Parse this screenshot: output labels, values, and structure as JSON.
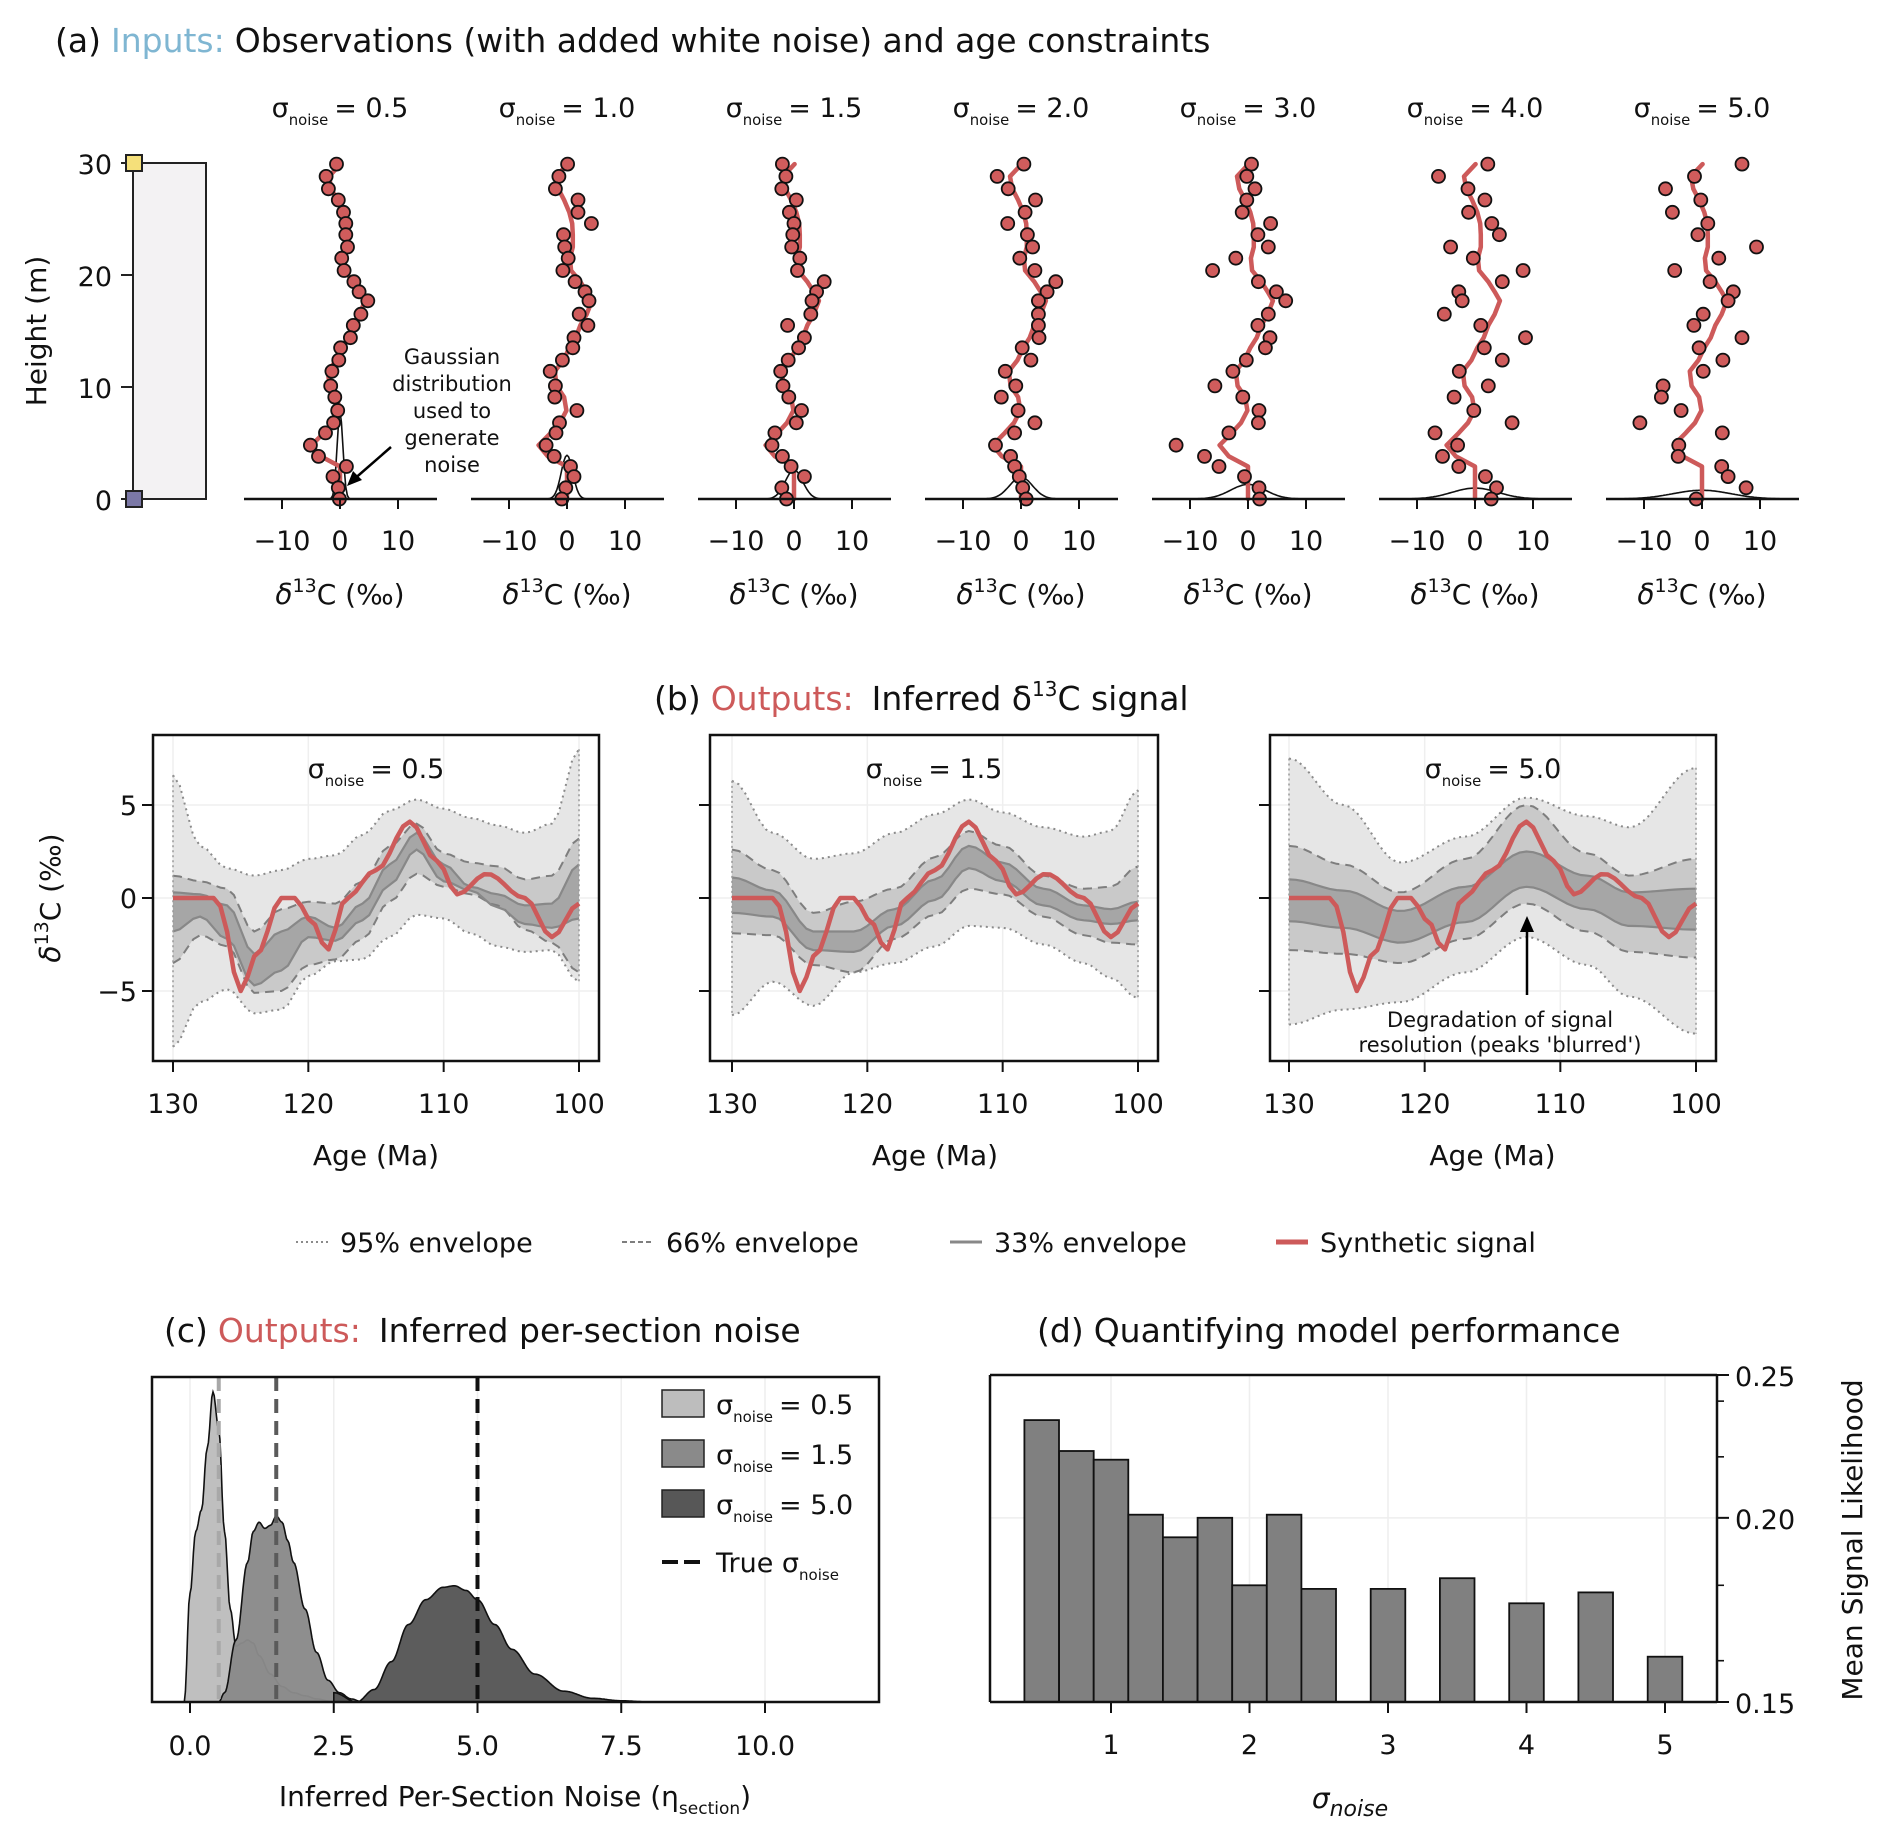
{
  "colors": {
    "inputs_accent": "#7fb6d2",
    "outputs_accent": "#cd5a5a",
    "signal": "#cd5a5a",
    "dot_fill": "#d05c5c",
    "strat_fill": "#f3f2f3",
    "top_marker": "#f5e07a",
    "bottom_marker": "#7b78a6",
    "env95": "#e6e6e6",
    "env66": "#c9c9c9",
    "env33": "#a6a6a6",
    "kde_05": "#bdbdbd",
    "kde_15": "#8a8a8a",
    "kde_50": "#575757",
    "bar": "#808080"
  },
  "panel_a": {
    "label": "(a)",
    "accent_word": "Inputs:",
    "rest_title": "Observations (with added white noise) and age constraints",
    "strat_column": {
      "ylabel": "Height (m)",
      "yticks": [
        0,
        10,
        20,
        30
      ],
      "ylim": [
        0,
        30
      ]
    },
    "sigma_symbol": "σ",
    "sigma_sub": "noise",
    "xticks": [
      -10,
      0,
      10
    ],
    "xlabel_main": "δ",
    "xlabel_sup": "13",
    "xlabel_rest": "C (‰)",
    "annotation": [
      "Gaussian",
      "distribution",
      "used to",
      "generate",
      "noise"
    ]
  },
  "panel_b": {
    "label": "(b)",
    "accent_word": "Outputs:",
    "rest_title_pre": "Inferred δ",
    "rest_title_sup": "13",
    "rest_title_post": "C signal",
    "ylabel_main": "δ",
    "ylabel_sup": "13",
    "ylabel_rest": "C (‰)",
    "xlabel": "Age (Ma)",
    "xticks": [
      130,
      120,
      110,
      100
    ],
    "yticks": [
      -5,
      0,
      5
    ],
    "annotation": [
      "Degradation of signal",
      "resolution (peaks 'blurred')"
    ],
    "legend": [
      {
        "key": "env95",
        "label": "95% envelope"
      },
      {
        "key": "env66",
        "label": "66% envelope"
      },
      {
        "key": "env33",
        "label": "33% envelope"
      },
      {
        "key": "signal",
        "label": "Synthetic signal"
      }
    ]
  },
  "panel_c": {
    "label": "(c)",
    "accent_word": "Outputs:",
    "rest_title": "Inferred per-section noise",
    "xlabel_main": "Inferred Per-Section Noise (η",
    "xlabel_sub": "section",
    "xlabel_end": ")",
    "xticks": [
      "0.0",
      "2.5",
      "5.0",
      "7.5",
      "10.0"
    ],
    "legend": [
      {
        "label": "= 0.5"
      },
      {
        "label": "= 1.5"
      },
      {
        "label": "= 5.0"
      },
      {
        "label": "True σ"
      }
    ]
  },
  "panel_d": {
    "label": "(d)",
    "title": "Quantifying model performance",
    "xlabel": "σ",
    "xlabel_sub": "noise",
    "ylabel": "Mean Signal Likelihood",
    "xticks": [
      "1",
      "2",
      "3",
      "4",
      "5"
    ],
    "yticks": [
      "0.15",
      "0.20",
      "0.25"
    ]
  },
  "chart_data": [
    {
      "id": "a",
      "type": "scatter",
      "title": "Observations (with added white noise) and age constraints",
      "xlabel": "δ13C (‰)",
      "ylabel": "Height (m)",
      "xlim": [
        -16,
        16
      ],
      "ylim": [
        0,
        30
      ],
      "age_constraints": [
        {
          "height": 30,
          "marker": "top"
        },
        {
          "height": 0,
          "marker": "bottom"
        }
      ],
      "heights": [
        29.9,
        28.8,
        27.7,
        26.7,
        25.6,
        24.6,
        23.6,
        22.5,
        21.5,
        20.4,
        19.4,
        18.5,
        17.7,
        16.5,
        15.5,
        14.4,
        13.5,
        12.4,
        11.4,
        10.1,
        9.1,
        7.9,
        6.8,
        5.9,
        4.8,
        3.8,
        2.9,
        2.0,
        1.0,
        0.0
      ],
      "true_signal": [
        0.1,
        -1.9,
        -1.5,
        -0.5,
        0.4,
        0.9,
        1.0,
        1.0,
        0.5,
        0.7,
        2.3,
        3.4,
        4.3,
        3.4,
        2.3,
        1.5,
        0.4,
        -0.6,
        -2.1,
        -1.8,
        -0.5,
        -0.1,
        -1.2,
        -2.8,
        -4.9,
        -3.3,
        0.0,
        0.0,
        0.0,
        0.0
      ],
      "panels": [
        {
          "sigma_label": "= 0.5",
          "sigma": 0.5,
          "values": [
            -0.6,
            -2.4,
            -2.0,
            -0.3,
            0.6,
            1.0,
            1.0,
            1.3,
            0.3,
            0.7,
            2.4,
            3.3,
            4.8,
            3.6,
            2.3,
            1.8,
            0.1,
            -0.2,
            -1.4,
            -1.6,
            -0.9,
            -0.4,
            -1.1,
            -2.5,
            -5.1,
            -3.7,
            1.1,
            -1.2,
            -0.3,
            -0.1
          ]
        },
        {
          "sigma_label": "= 1.0",
          "sigma": 1.0,
          "values": [
            0.1,
            -1.4,
            -2.0,
            1.9,
            1.9,
            4.2,
            -0.6,
            -0.4,
            0.2,
            -0.7,
            1.4,
            3.1,
            3.8,
            2.1,
            3.6,
            1.2,
            1.0,
            -0.8,
            -2.9,
            -2.0,
            -2.1,
            1.7,
            -1.3,
            -1.9,
            -3.6,
            -2.2,
            0.6,
            1.2,
            -0.2,
            -0.9
          ]
        },
        {
          "sigma_label": "= 1.5",
          "sigma": 1.5,
          "values": [
            -2.0,
            -1.4,
            -2.1,
            0.4,
            -0.8,
            0.0,
            -0.2,
            -0.4,
            1.0,
            0.6,
            5.2,
            3.9,
            3.1,
            2.9,
            -1.1,
            1.8,
            0.8,
            -1.0,
            -2.3,
            -1.9,
            -0.9,
            1.3,
            0.4,
            -3.3,
            -3.8,
            -2.0,
            -0.5,
            1.8,
            -2.1,
            -1.3
          ]
        },
        {
          "sigma_label": "= 2.0",
          "sigma": 2.0,
          "values": [
            0.5,
            -4.1,
            -2.2,
            2.5,
            0.7,
            -2.3,
            1.1,
            2.0,
            -0.2,
            2.4,
            6.0,
            4.5,
            3.0,
            3.0,
            3.0,
            3.1,
            0.2,
            1.7,
            -2.7,
            -0.9,
            -3.4,
            -0.5,
            2.4,
            -1.1,
            -4.4,
            -1.8,
            -1.1,
            -0.3,
            0.3,
            0.9
          ]
        },
        {
          "sigma_label": "= 3.0",
          "sigma": 3.0,
          "values": [
            0.6,
            -0.2,
            1.2,
            -0.2,
            -1.0,
            3.9,
            1.7,
            3.5,
            -2.1,
            -6.1,
            1.8,
            4.9,
            6.5,
            3.5,
            1.7,
            3.8,
            3.0,
            -0.3,
            -2.6,
            -5.7,
            -0.9,
            1.9,
            1.8,
            -3.3,
            -12.4,
            -7.5,
            -5.0,
            -0.6,
            1.9,
            2.0
          ]
        },
        {
          "sigma_label": "= 4.0",
          "sigma": 4.0,
          "values": [
            2.2,
            -6.3,
            -1.2,
            1.7,
            -1.1,
            2.9,
            4.2,
            -4.2,
            -0.3,
            8.3,
            4.7,
            -2.8,
            -2.2,
            -5.3,
            1.0,
            8.7,
            1.6,
            4.7,
            -2.7,
            2.3,
            -3.6,
            -0.2,
            6.4,
            -6.9,
            -3.0,
            -5.6,
            -2.8,
            1.8,
            3.7,
            2.8
          ]
        },
        {
          "sigma_label": "= 5.0",
          "sigma": 5.0,
          "values": [
            6.9,
            -1.3,
            -6.3,
            -0.2,
            -5.1,
            1.0,
            -0.7,
            9.4,
            2.9,
            -4.7,
            1.4,
            5.4,
            4.5,
            0.2,
            -1.4,
            6.9,
            -0.5,
            3.6,
            0.2,
            -6.7,
            -7.0,
            -3.6,
            -10.7,
            3.5,
            -4.0,
            -4.1,
            3.4,
            4.5,
            7.6,
            -1.0
          ]
        }
      ]
    },
    {
      "id": "b",
      "type": "area",
      "title": "Inferred δ13C signal",
      "xlabel": "Age (Ma)",
      "ylabel": "δ13C (‰)",
      "xlim": [
        131.5,
        98.5
      ],
      "ylim": [
        -7.5,
        8.5
      ],
      "synthetic_signal": {
        "age": [
          130,
          127,
          126.6,
          125,
          123.8,
          122,
          121,
          119.8,
          118.6,
          117.2,
          115,
          112.5,
          110.5,
          109,
          106.8,
          104,
          102,
          100
        ],
        "value": [
          0,
          0,
          -0.4,
          -5.0,
          -3.0,
          0,
          0,
          -1.2,
          -2.8,
          0,
          1.5,
          4.1,
          2.0,
          0.2,
          1.3,
          0,
          -2.1,
          -0.3
        ]
      },
      "panels": [
        {
          "sigma_label": "= 0.5",
          "age": [
            130,
            128,
            126,
            124,
            122,
            120,
            118,
            116,
            114,
            112,
            110,
            108,
            106,
            104,
            102,
            100
          ],
          "p95_upper": [
            6.6,
            2.8,
            1.6,
            1.2,
            1.5,
            2.1,
            2.3,
            3.4,
            4.7,
            5.3,
            4.8,
            4.3,
            3.9,
            3.5,
            4.0,
            8.0
          ],
          "p95_lower": [
            -8.0,
            -5.6,
            -4.9,
            -6.2,
            -6.0,
            -4.2,
            -3.4,
            -3.3,
            -2.1,
            -0.9,
            -1.1,
            -1.9,
            -2.6,
            -2.9,
            -2.8,
            -4.5
          ],
          "p66_upper": [
            1.2,
            0.9,
            0.5,
            -1.8,
            -0.6,
            -0.2,
            -0.3,
            0.9,
            2.8,
            4.0,
            2.4,
            1.9,
            1.7,
            1.0,
            1.2,
            3.2
          ],
          "p66_lower": [
            -3.5,
            -2.0,
            -2.6,
            -5.1,
            -5.0,
            -3.6,
            -3.3,
            -2.2,
            -0.2,
            1.3,
            0.6,
            0.2,
            -0.4,
            -1.7,
            -2.4,
            -4.0
          ],
          "p33_upper": [
            0.3,
            0.2,
            -0.4,
            -3.0,
            -1.8,
            -1.0,
            -1.6,
            -0.3,
            1.8,
            3.5,
            1.8,
            0.6,
            0.2,
            -0.4,
            -0.3,
            1.8
          ],
          "p33_lower": [
            -1.8,
            -1.0,
            -2.2,
            -4.7,
            -3.9,
            -2.1,
            -2.3,
            -1.2,
            0.7,
            2.6,
            0.9,
            0.4,
            -0.5,
            -1.4,
            -1.6,
            -1.1
          ]
        },
        {
          "sigma_label": "= 1.5",
          "age": [
            130,
            127,
            124,
            121,
            118,
            115,
            112.5,
            110,
            107,
            104,
            102,
            100
          ],
          "p95_upper": [
            6.3,
            3.5,
            2.1,
            2.4,
            3.5,
            4.5,
            5.3,
            4.6,
            3.8,
            3.3,
            3.6,
            5.8
          ],
          "p95_lower": [
            -6.3,
            -4.5,
            -5.8,
            -4.0,
            -3.5,
            -2.6,
            -1.5,
            -1.6,
            -2.5,
            -3.5,
            -4.3,
            -5.4
          ],
          "p66_upper": [
            2.6,
            1.5,
            -0.8,
            -0.2,
            0.5,
            2.2,
            3.6,
            2.8,
            1.2,
            0.5,
            0.6,
            1.7
          ],
          "p66_lower": [
            -1.9,
            -2.0,
            -3.6,
            -4.0,
            -2.2,
            -0.9,
            0.5,
            0.2,
            -1.0,
            -2.0,
            -2.4,
            -2.5
          ],
          "p33_upper": [
            1.1,
            0.4,
            -1.8,
            -1.8,
            -0.6,
            1.0,
            2.8,
            1.9,
            0.5,
            -0.4,
            -0.6,
            -0.2
          ],
          "p33_lower": [
            -0.8,
            -1.0,
            -2.8,
            -2.9,
            -1.5,
            -0.1,
            1.6,
            0.9,
            -0.4,
            -1.2,
            -1.4,
            -1.2
          ]
        },
        {
          "sigma_label": "= 5.0",
          "age": [
            130,
            126,
            121.8,
            117,
            112.5,
            108,
            104.9,
            100
          ],
          "p95_upper": [
            7.5,
            5.0,
            1.9,
            3.3,
            5.4,
            4.4,
            3.8,
            7.0
          ],
          "p95_lower": [
            -6.8,
            -6.0,
            -5.6,
            -4.0,
            -2.1,
            -3.6,
            -5.3,
            -7.3
          ],
          "p66_upper": [
            2.8,
            1.8,
            0.3,
            2.1,
            5.0,
            2.4,
            1.2,
            2.1
          ],
          "p66_lower": [
            -2.8,
            -3.0,
            -3.5,
            -2.2,
            -0.3,
            -1.8,
            -2.9,
            -3.2
          ],
          "p33_upper": [
            1.0,
            0.4,
            -0.7,
            0.6,
            2.5,
            1.2,
            0.3,
            0.5
          ],
          "p33_lower": [
            -1.25,
            -1.6,
            -2.4,
            -1.3,
            0.6,
            -0.6,
            -1.5,
            -1.7
          ]
        }
      ],
      "legend": [
        "95% envelope",
        "66% envelope",
        "33% envelope",
        "Synthetic signal"
      ],
      "legend_position": "bottom-center"
    },
    {
      "id": "c",
      "type": "area",
      "title": "Inferred per-section noise",
      "xlabel": "Inferred Per-Section Noise (η_section)",
      "ylabel": "",
      "xlim": [
        -0.6,
        12.0
      ],
      "xticks": [
        0.0,
        2.5,
        5.0,
        7.5,
        10.0
      ],
      "true_sigma_lines": [
        0.5,
        1.5,
        5.0
      ],
      "series": [
        {
          "name": "σnoise = 0.5",
          "x": [
            -0.1,
            0.0,
            0.1,
            0.2,
            0.3,
            0.4,
            0.5,
            0.6,
            0.7,
            0.8,
            0.9,
            1.0,
            1.1,
            1.2,
            1.4,
            1.6,
            1.8,
            2.0,
            2.2,
            2.5
          ],
          "density": [
            0.0,
            0.35,
            0.55,
            0.62,
            0.82,
            1.0,
            0.88,
            0.55,
            0.3,
            0.18,
            0.19,
            0.2,
            0.19,
            0.15,
            0.09,
            0.05,
            0.03,
            0.02,
            0.01,
            0.0
          ]
        },
        {
          "name": "σnoise = 1.5",
          "x": [
            0.5,
            0.6,
            0.8,
            1.0,
            1.1,
            1.2,
            1.3,
            1.4,
            1.5,
            1.6,
            1.7,
            1.8,
            2.0,
            2.2,
            2.4,
            2.6,
            2.8,
            3.0
          ],
          "density": [
            0.0,
            0.03,
            0.2,
            0.45,
            0.55,
            0.58,
            0.56,
            0.57,
            0.6,
            0.58,
            0.52,
            0.45,
            0.3,
            0.16,
            0.07,
            0.03,
            0.01,
            0.0
          ]
        },
        {
          "name": "σnoise = 5.0",
          "x": [
            2.5,
            2.9,
            3.2,
            3.5,
            3.8,
            4.1,
            4.4,
            4.6,
            4.8,
            5.0,
            5.3,
            5.6,
            6.0,
            6.5,
            7.0,
            7.5,
            8.0
          ],
          "density": [
            0.03,
            0.0,
            0.04,
            0.13,
            0.25,
            0.33,
            0.37,
            0.375,
            0.36,
            0.33,
            0.25,
            0.17,
            0.09,
            0.035,
            0.012,
            0.004,
            0.0
          ]
        }
      ],
      "legend": [
        "σnoise = 0.5",
        "σnoise = 1.5",
        "σnoise = 5.0",
        "True σnoise"
      ],
      "legend_position": "top-right"
    },
    {
      "id": "d",
      "type": "bar",
      "title": "Quantifying model performance",
      "xlabel": "σnoise",
      "ylabel": "Mean Signal Likelihood",
      "yscale": "log",
      "ylim": [
        0.15,
        0.25
      ],
      "yaxis_side": "right",
      "x": [
        0.5,
        0.75,
        1.0,
        1.25,
        1.5,
        1.75,
        2.0,
        2.25,
        2.5,
        3.0,
        3.5,
        4.0,
        4.5,
        5.0
      ],
      "values": [
        0.233,
        0.222,
        0.219,
        0.201,
        0.194,
        0.2,
        0.18,
        0.201,
        0.179,
        0.179,
        0.182,
        0.175,
        0.178,
        0.161
      ],
      "bar_width": 0.25
    }
  ]
}
